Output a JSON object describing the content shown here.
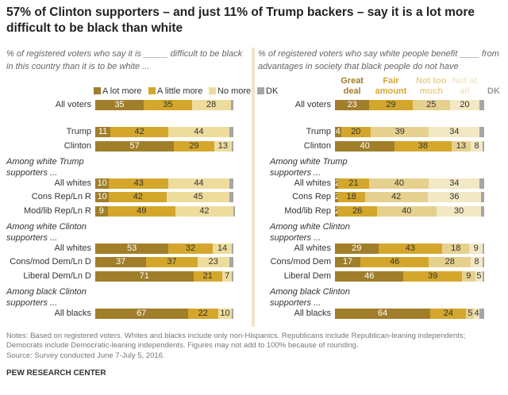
{
  "title": "57% of Clinton supporters – and just 11% of Trump backers – say it is a lot more difficult to be black than white",
  "chart_data": [
    {
      "type": "bar",
      "orientation": "horizontal",
      "stacked": true,
      "legend": "top",
      "subtitle": "% of registered voters who say it is _____ difficult to be black in this country than it is to be white ...",
      "categories": [
        "All voters",
        "Trump",
        "Clinton",
        "Among white Trump supporters ...",
        "All whites",
        "Cons Rep/Ln R",
        "Mod/lib Rep/Ln R",
        "Among white Clinton supporters ...",
        "All whites",
        "Cons/mod Dem/Ln D",
        "Liberal Dem/Ln D",
        "Among black Clinton supporters ...",
        "All blacks"
      ],
      "xlim": [
        0,
        100
      ],
      "series": [
        {
          "name": "A lot more",
          "color": "#a07e2a",
          "values": [
            35,
            11,
            57,
            null,
            10,
            10,
            9,
            null,
            53,
            37,
            71,
            null,
            67
          ]
        },
        {
          "name": "A little more",
          "color": "#d4a72c",
          "values": [
            35,
            42,
            29,
            null,
            43,
            42,
            49,
            null,
            32,
            37,
            21,
            null,
            22
          ]
        },
        {
          "name": "No more",
          "color": "#eedc9c",
          "values": [
            28,
            44,
            13,
            null,
            44,
            45,
            42,
            null,
            14,
            23,
            7,
            null,
            10
          ]
        },
        {
          "name": "DK",
          "color": "#a6a6a6",
          "show_labels": false,
          "values": [
            2,
            3,
            1,
            null,
            3,
            3,
            1,
            null,
            1,
            3,
            1,
            null,
            1
          ]
        }
      ]
    },
    {
      "type": "bar",
      "orientation": "horizontal",
      "stacked": true,
      "legend": "above-bars",
      "subtitle": "% of registered voters who say white people benefit ____ from advantages in society that black people do not have",
      "categories": [
        "All voters",
        "Trump",
        "Clinton",
        "Among white Trump supporters ...",
        "All whites",
        "Cons Rep",
        "Mod/lib Rep",
        "Among white Clinton supporters ...",
        "All whites",
        "Cons/mod Dem",
        "Liberal Dem",
        "Among black Clinton supporters ...",
        "All blacks"
      ],
      "xlim": [
        0,
        100
      ],
      "series": [
        {
          "name": "Great deal",
          "color": "#a07e2a",
          "values": [
            23,
            4,
            40,
            null,
            2,
            2,
            2,
            null,
            29,
            17,
            46,
            null,
            64
          ]
        },
        {
          "name": "Fair amount",
          "color": "#d4a72c",
          "values": [
            29,
            20,
            38,
            null,
            21,
            18,
            26,
            null,
            43,
            46,
            39,
            null,
            24
          ]
        },
        {
          "name": "Not too much",
          "color": "#e6d08e",
          "values": [
            25,
            39,
            13,
            null,
            40,
            42,
            40,
            null,
            18,
            28,
            9,
            null,
            5
          ]
        },
        {
          "name": "Not at all",
          "color": "#f3e8c4",
          "values": [
            20,
            34,
            8,
            null,
            34,
            36,
            30,
            null,
            9,
            8,
            5,
            null,
            4
          ]
        },
        {
          "name": "DK",
          "color": "#a6a6a6",
          "show_labels": false,
          "values": [
            3,
            3,
            1,
            null,
            3,
            2,
            2,
            null,
            1,
            1,
            1,
            null,
            3
          ]
        }
      ]
    }
  ],
  "notes": "Notes: Based on registered voters. Whites and blacks include only non-Hispanics. Republicans include Republican-leaning independents; Democrats include Democratic-leaning independents. Figures may not add to 100% because of rounding.",
  "source": "Source: Survey conducted June 7-July 5, 2016.",
  "credit": "PEW RESEARCH CENTER"
}
